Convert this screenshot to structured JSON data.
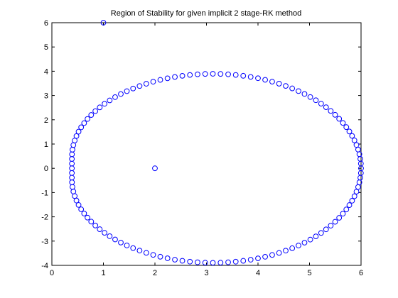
{
  "chart_data": {
    "type": "scatter",
    "title": "Region of Stability for given implicit 2 stage-RK method",
    "xlabel": "",
    "ylabel": "",
    "xlim": [
      0,
      6
    ],
    "ylim": [
      -4,
      6
    ],
    "x_ticks": [
      "0",
      "1",
      "2",
      "3",
      "4",
      "5",
      "6"
    ],
    "y_ticks": [
      "-4",
      "-3",
      "-2",
      "-1",
      "0",
      "1",
      "2",
      "3",
      "4",
      "5",
      "6"
    ],
    "grid": false,
    "marker": "circle",
    "marker_color": "#0000ff",
    "series": [
      {
        "points": [
          [
            6.0,
            0.0
          ],
          [
            5.997,
            0.194
          ],
          [
            5.986,
            0.388
          ],
          [
            5.968,
            0.581
          ],
          [
            5.943,
            0.773
          ],
          [
            5.911,
            0.963
          ],
          [
            5.872,
            1.151
          ],
          [
            5.826,
            1.336
          ],
          [
            5.773,
            1.517
          ],
          [
            5.714,
            1.696
          ],
          [
            5.648,
            1.87
          ],
          [
            5.575,
            2.04
          ],
          [
            5.497,
            2.204
          ],
          [
            5.412,
            2.364
          ],
          [
            5.321,
            2.517
          ],
          [
            5.225,
            2.664
          ],
          [
            5.123,
            2.805
          ],
          [
            5.015,
            2.938
          ],
          [
            4.903,
            3.064
          ],
          [
            4.786,
            3.182
          ],
          [
            4.664,
            3.293
          ],
          [
            4.538,
            3.394
          ],
          [
            4.409,
            3.487
          ],
          [
            4.275,
            3.571
          ],
          [
            4.139,
            3.646
          ],
          [
            4.0,
            3.711
          ],
          [
            3.858,
            3.767
          ],
          [
            3.714,
            3.812
          ],
          [
            3.568,
            3.848
          ],
          [
            3.421,
            3.873
          ],
          [
            3.273,
            3.889
          ],
          [
            3.124,
            3.894
          ],
          [
            2.975,
            3.889
          ],
          [
            2.827,
            3.873
          ],
          [
            2.679,
            3.847
          ],
          [
            2.532,
            3.811
          ],
          [
            2.387,
            3.765
          ],
          [
            2.244,
            3.709
          ],
          [
            2.104,
            3.644
          ],
          [
            1.966,
            3.568
          ],
          [
            1.832,
            3.484
          ],
          [
            1.702,
            3.391
          ],
          [
            1.576,
            3.289
          ],
          [
            1.455,
            3.179
          ],
          [
            1.338,
            3.06
          ],
          [
            1.227,
            2.933
          ],
          [
            1.122,
            2.799
          ],
          [
            1.022,
            2.658
          ],
          [
            0.929,
            2.511
          ],
          [
            0.843,
            2.357
          ],
          [
            0.763,
            2.197
          ],
          [
            0.691,
            2.033
          ],
          [
            0.626,
            1.863
          ],
          [
            0.568,
            1.689
          ],
          [
            0.518,
            1.51
          ],
          [
            0.477,
            1.329
          ],
          [
            0.443,
            1.144
          ],
          [
            0.417,
            0.957
          ],
          [
            0.399,
            0.768
          ],
          [
            0.39,
            0.577
          ],
          [
            0.388,
            0.385
          ],
          [
            0.388,
            0.193
          ],
          [
            0.388,
            0.0
          ],
          [
            0.388,
            -0.193
          ],
          [
            0.388,
            -0.385
          ],
          [
            0.39,
            -0.577
          ],
          [
            0.399,
            -0.768
          ],
          [
            0.417,
            -0.957
          ],
          [
            0.443,
            -1.144
          ],
          [
            0.477,
            -1.329
          ],
          [
            0.518,
            -1.51
          ],
          [
            0.568,
            -1.689
          ],
          [
            0.626,
            -1.863
          ],
          [
            0.691,
            -2.033
          ],
          [
            0.763,
            -2.197
          ],
          [
            0.843,
            -2.357
          ],
          [
            0.929,
            -2.511
          ],
          [
            1.022,
            -2.658
          ],
          [
            1.122,
            -2.799
          ],
          [
            1.227,
            -2.933
          ],
          [
            1.338,
            -3.06
          ],
          [
            1.455,
            -3.179
          ],
          [
            1.576,
            -3.289
          ],
          [
            1.702,
            -3.391
          ],
          [
            1.832,
            -3.484
          ],
          [
            1.966,
            -3.568
          ],
          [
            2.104,
            -3.644
          ],
          [
            2.244,
            -3.709
          ],
          [
            2.387,
            -3.765
          ],
          [
            2.532,
            -3.811
          ],
          [
            2.679,
            -3.847
          ],
          [
            2.827,
            -3.873
          ],
          [
            2.975,
            -3.889
          ],
          [
            3.124,
            -3.894
          ],
          [
            3.273,
            -3.889
          ],
          [
            3.421,
            -3.873
          ],
          [
            3.568,
            -3.848
          ],
          [
            3.714,
            -3.812
          ],
          [
            3.858,
            -3.767
          ],
          [
            4.0,
            -3.711
          ],
          [
            4.139,
            -3.646
          ],
          [
            4.275,
            -3.571
          ],
          [
            4.409,
            -3.487
          ],
          [
            4.538,
            -3.394
          ],
          [
            4.664,
            -3.293
          ],
          [
            4.786,
            -3.182
          ],
          [
            4.903,
            -3.064
          ],
          [
            5.015,
            -2.938
          ],
          [
            5.123,
            -2.805
          ],
          [
            5.225,
            -2.664
          ],
          [
            5.321,
            -2.517
          ],
          [
            5.412,
            -2.364
          ],
          [
            5.497,
            -2.204
          ],
          [
            5.575,
            -2.04
          ],
          [
            5.648,
            -1.87
          ],
          [
            5.714,
            -1.696
          ],
          [
            5.773,
            -1.517
          ],
          [
            5.826,
            -1.336
          ],
          [
            5.872,
            -1.151
          ],
          [
            5.911,
            -0.963
          ],
          [
            5.943,
            -0.773
          ],
          [
            5.968,
            -0.581
          ],
          [
            5.986,
            -0.388
          ],
          [
            5.997,
            -0.194
          ],
          [
            2.0,
            0.0
          ],
          [
            1.0,
            6.0
          ]
        ]
      }
    ]
  }
}
